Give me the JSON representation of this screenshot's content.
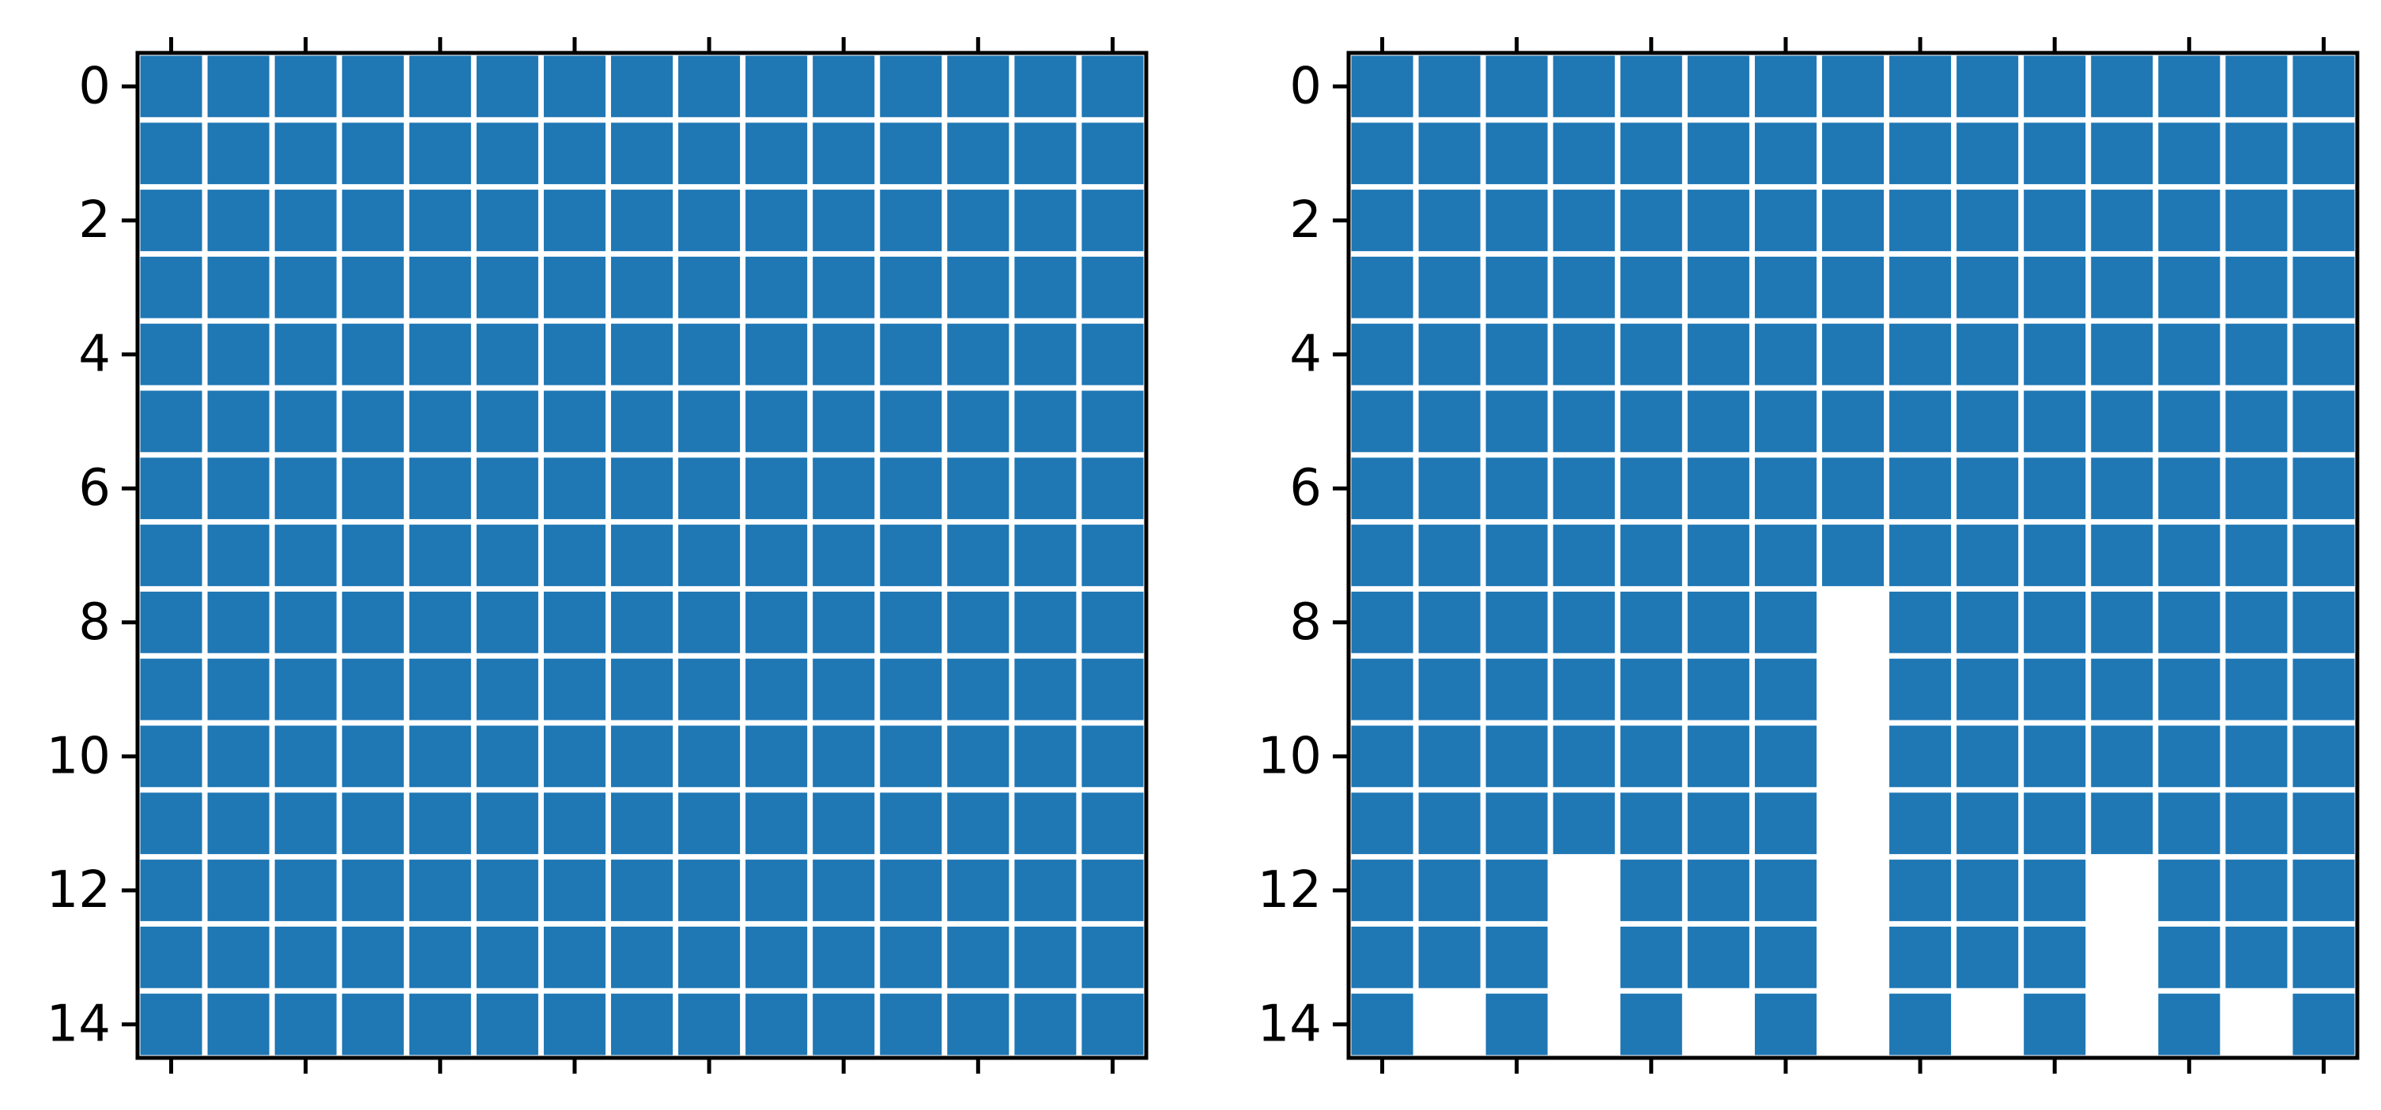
{
  "chart_data": [
    {
      "type": "heatmap",
      "title": "",
      "xlabel": "",
      "ylabel": "",
      "rows": 15,
      "cols": 15,
      "yticks": [
        0,
        2,
        4,
        6,
        8,
        10,
        12,
        14
      ],
      "xtick_count": 8,
      "xtick_labels_shown": false,
      "cell_color": "#1f77b4",
      "empty_color": "#ffffff",
      "grid": true,
      "values": [
        [
          1,
          1,
          1,
          1,
          1,
          1,
          1,
          1,
          1,
          1,
          1,
          1,
          1,
          1,
          1
        ],
        [
          1,
          1,
          1,
          1,
          1,
          1,
          1,
          1,
          1,
          1,
          1,
          1,
          1,
          1,
          1
        ],
        [
          1,
          1,
          1,
          1,
          1,
          1,
          1,
          1,
          1,
          1,
          1,
          1,
          1,
          1,
          1
        ],
        [
          1,
          1,
          1,
          1,
          1,
          1,
          1,
          1,
          1,
          1,
          1,
          1,
          1,
          1,
          1
        ],
        [
          1,
          1,
          1,
          1,
          1,
          1,
          1,
          1,
          1,
          1,
          1,
          1,
          1,
          1,
          1
        ],
        [
          1,
          1,
          1,
          1,
          1,
          1,
          1,
          1,
          1,
          1,
          1,
          1,
          1,
          1,
          1
        ],
        [
          1,
          1,
          1,
          1,
          1,
          1,
          1,
          1,
          1,
          1,
          1,
          1,
          1,
          1,
          1
        ],
        [
          1,
          1,
          1,
          1,
          1,
          1,
          1,
          1,
          1,
          1,
          1,
          1,
          1,
          1,
          1
        ],
        [
          1,
          1,
          1,
          1,
          1,
          1,
          1,
          1,
          1,
          1,
          1,
          1,
          1,
          1,
          1
        ],
        [
          1,
          1,
          1,
          1,
          1,
          1,
          1,
          1,
          1,
          1,
          1,
          1,
          1,
          1,
          1
        ],
        [
          1,
          1,
          1,
          1,
          1,
          1,
          1,
          1,
          1,
          1,
          1,
          1,
          1,
          1,
          1
        ],
        [
          1,
          1,
          1,
          1,
          1,
          1,
          1,
          1,
          1,
          1,
          1,
          1,
          1,
          1,
          1
        ],
        [
          1,
          1,
          1,
          1,
          1,
          1,
          1,
          1,
          1,
          1,
          1,
          1,
          1,
          1,
          1
        ],
        [
          1,
          1,
          1,
          1,
          1,
          1,
          1,
          1,
          1,
          1,
          1,
          1,
          1,
          1,
          1
        ],
        [
          1,
          1,
          1,
          1,
          1,
          1,
          1,
          1,
          1,
          1,
          1,
          1,
          1,
          1,
          1
        ]
      ]
    },
    {
      "type": "heatmap",
      "title": "",
      "xlabel": "",
      "ylabel": "",
      "rows": 15,
      "cols": 15,
      "yticks": [
        0,
        2,
        4,
        6,
        8,
        10,
        12,
        14
      ],
      "xtick_count": 8,
      "xtick_labels_shown": false,
      "cell_color": "#1f77b4",
      "empty_color": "#ffffff",
      "grid": true,
      "values": [
        [
          1,
          1,
          1,
          1,
          1,
          1,
          1,
          1,
          1,
          1,
          1,
          1,
          1,
          1,
          1
        ],
        [
          1,
          1,
          1,
          1,
          1,
          1,
          1,
          1,
          1,
          1,
          1,
          1,
          1,
          1,
          1
        ],
        [
          1,
          1,
          1,
          1,
          1,
          1,
          1,
          1,
          1,
          1,
          1,
          1,
          1,
          1,
          1
        ],
        [
          1,
          1,
          1,
          1,
          1,
          1,
          1,
          1,
          1,
          1,
          1,
          1,
          1,
          1,
          1
        ],
        [
          1,
          1,
          1,
          1,
          1,
          1,
          1,
          1,
          1,
          1,
          1,
          1,
          1,
          1,
          1
        ],
        [
          1,
          1,
          1,
          1,
          1,
          1,
          1,
          1,
          1,
          1,
          1,
          1,
          1,
          1,
          1
        ],
        [
          1,
          1,
          1,
          1,
          1,
          1,
          1,
          1,
          1,
          1,
          1,
          1,
          1,
          1,
          1
        ],
        [
          1,
          1,
          1,
          1,
          1,
          1,
          1,
          1,
          1,
          1,
          1,
          1,
          1,
          1,
          1
        ],
        [
          1,
          1,
          1,
          1,
          1,
          1,
          1,
          0,
          1,
          1,
          1,
          1,
          1,
          1,
          1
        ],
        [
          1,
          1,
          1,
          1,
          1,
          1,
          1,
          0,
          1,
          1,
          1,
          1,
          1,
          1,
          1
        ],
        [
          1,
          1,
          1,
          1,
          1,
          1,
          1,
          0,
          1,
          1,
          1,
          1,
          1,
          1,
          1
        ],
        [
          1,
          1,
          1,
          1,
          1,
          1,
          1,
          0,
          1,
          1,
          1,
          1,
          1,
          1,
          1
        ],
        [
          1,
          1,
          1,
          0,
          1,
          1,
          1,
          0,
          1,
          1,
          1,
          0,
          1,
          1,
          1
        ],
        [
          1,
          1,
          1,
          0,
          1,
          1,
          1,
          0,
          1,
          1,
          1,
          0,
          1,
          1,
          1
        ],
        [
          1,
          0,
          1,
          0,
          1,
          0,
          1,
          0,
          1,
          0,
          1,
          0,
          1,
          0,
          1
        ]
      ]
    }
  ]
}
